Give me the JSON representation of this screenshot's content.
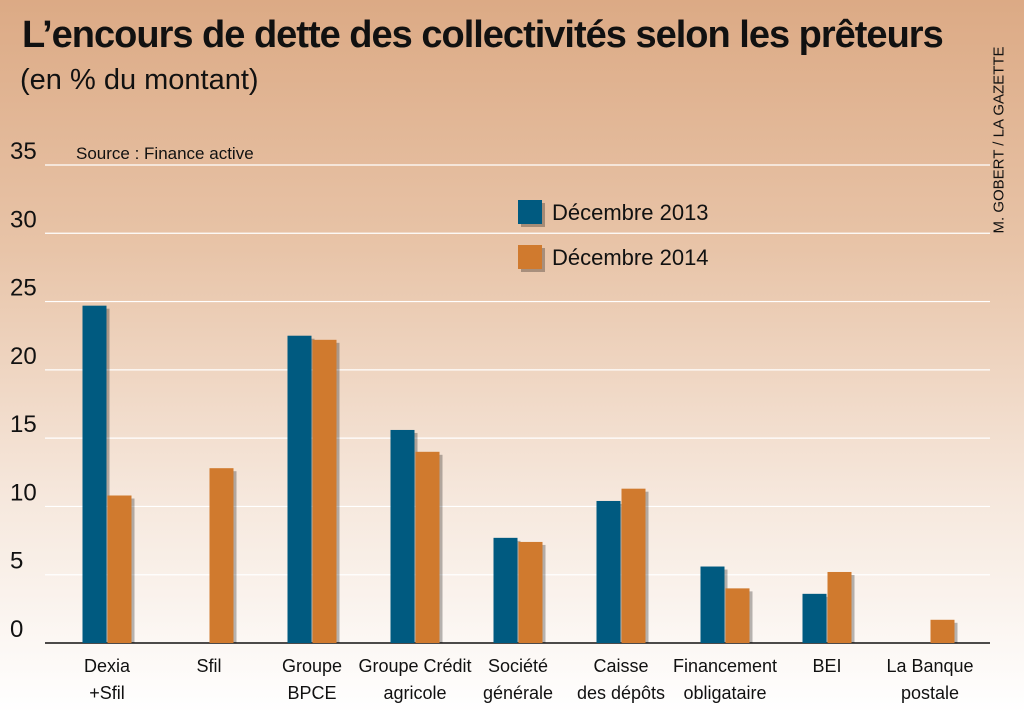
{
  "header": {
    "title": "L’encours de dette des collectivités selon les prêteurs",
    "subtitle": "(en % du montant)",
    "credit": "M. GOBERT / LA GAZETTE"
  },
  "chart_data": {
    "type": "bar",
    "source": "Source : Finance active",
    "categories": [
      [
        "Dexia",
        "+Sfil"
      ],
      [
        "Sfil"
      ],
      [
        "Groupe",
        "BPCE"
      ],
      [
        "Groupe Crédit",
        "agricole"
      ],
      [
        "Société",
        "générale"
      ],
      [
        "Caisse",
        "des dépôts"
      ],
      [
        "Financement",
        "obligataire"
      ],
      [
        "BEI"
      ],
      [
        "La Banque",
        "postale"
      ]
    ],
    "series": [
      {
        "name": "Décembre 2013",
        "color": "#005a80",
        "values": [
          24.7,
          null,
          22.5,
          15.6,
          7.7,
          10.4,
          5.6,
          3.6,
          null
        ]
      },
      {
        "name": "Décembre 2014",
        "color": "#d07a2e",
        "values": [
          10.8,
          12.8,
          22.2,
          14.0,
          7.4,
          11.3,
          4.0,
          5.2,
          1.7
        ]
      }
    ],
    "yticks": [
      0,
      5,
      10,
      15,
      20,
      25,
      30,
      35
    ],
    "ylim": [
      0,
      35
    ],
    "grid": true,
    "legend": "top-center"
  }
}
